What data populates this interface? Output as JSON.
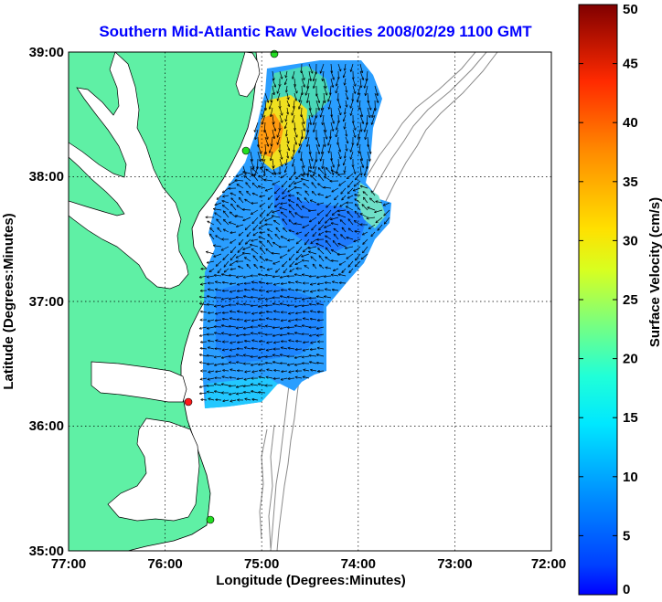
{
  "chart_data": {
    "type": "map",
    "title": "Southern Mid-Atlantic Raw Velocities 2008/02/29 1100 GMT",
    "xlabel": "Longitude (Degrees:Minutes)",
    "ylabel": "Latitude (Degrees:Minutes)",
    "x_ticks": [
      "77:00",
      "76:00",
      "75:00",
      "74:00",
      "73:00",
      "72:00"
    ],
    "y_ticks": [
      "39:00",
      "38:00",
      "37:00",
      "36:00",
      "35:00"
    ],
    "xlim": [
      -77,
      -72
    ],
    "ylim": [
      35,
      39
    ],
    "grid": true,
    "colorbar": {
      "label": "Surface Velocity (cm/s)",
      "range": [
        0,
        50
      ],
      "ticks": [
        "0",
        "5",
        "10",
        "15",
        "20",
        "25",
        "30",
        "35",
        "40",
        "45",
        "50"
      ]
    },
    "stations": [
      {
        "lon": -75.08,
        "lat": 38.99
      },
      {
        "lon": -75.15,
        "lat": 38.22
      },
      {
        "lon": -75.7,
        "lat": 36.18
      },
      {
        "lon": -75.48,
        "lat": 35.25
      }
    ],
    "colors": {
      "land": "#5ff0a5",
      "water": "#ffffff",
      "bathymetry": "#8a8a8a",
      "title": "#0000ff",
      "station_green": "#22dd22",
      "station_red": "#ff1a1a"
    }
  }
}
